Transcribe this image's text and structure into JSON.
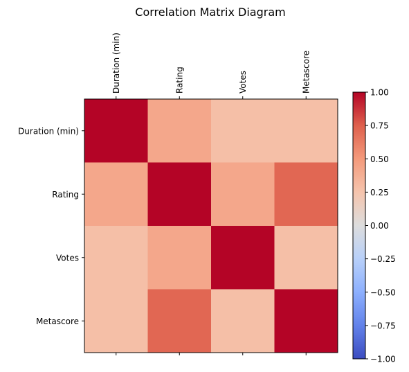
{
  "chart_data": {
    "type": "heatmap",
    "title": "Correlation Matrix Diagram",
    "rows": [
      "Duration (min)",
      "Rating",
      "Votes",
      "Metascore"
    ],
    "columns": [
      "Duration (min)",
      "Rating",
      "Votes",
      "Metascore"
    ],
    "values": [
      [
        1.0,
        0.42,
        0.28,
        0.28
      ],
      [
        0.42,
        1.0,
        0.42,
        0.72
      ],
      [
        0.28,
        0.42,
        1.0,
        0.28
      ],
      [
        0.28,
        0.72,
        0.28,
        1.0
      ]
    ],
    "colormap": "coolwarm",
    "colorbar": {
      "range": [
        -1.0,
        1.0
      ],
      "ticks": [
        "1.00",
        "0.75",
        "0.50",
        "0.25",
        "0.00",
        "−0.25",
        "−0.50",
        "−0.75",
        "−1.00"
      ],
      "tick_values": [
        1.0,
        0.75,
        0.5,
        0.25,
        0.0,
        -0.25,
        -0.5,
        -0.75,
        -1.0
      ]
    }
  }
}
